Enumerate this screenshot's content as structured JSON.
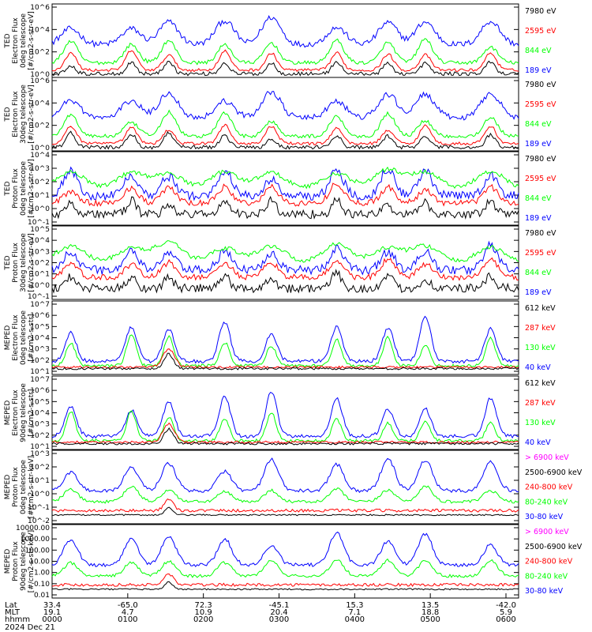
{
  "colors": {
    "blue": "#0000ff",
    "red": "#ff0000",
    "green": "#00ff00",
    "black": "#000000",
    "magenta": "#ff00ff"
  },
  "chart_data": [
    {
      "type": "line",
      "ylabel_lines": [
        "TED",
        "Electron Flux",
        "0deg telescope",
        "[#/cm2-s-str-eV]"
      ],
      "ytick_labels": [
        "10^6",
        "10^4",
        "10^2",
        "10^0"
      ],
      "ylim_log10": [
        0,
        6
      ],
      "legend": [
        {
          "label": "7980 eV",
          "color": "#000000"
        },
        {
          "label": "2595 eV",
          "color": "#ff0000"
        },
        {
          "label": "844 eV",
          "color": "#00ff00"
        },
        {
          "label": "189 eV",
          "color": "#0000ff"
        }
      ]
    },
    {
      "type": "line",
      "ylabel_lines": [
        "TED",
        "Electron Flux",
        "30deg telescope",
        "[#/cm2-s-str-eV]"
      ],
      "ytick_labels": [
        "10^6",
        "10^4",
        "10^2",
        "10^0"
      ],
      "ylim_log10": [
        0,
        6
      ],
      "legend": [
        {
          "label": "7980 eV",
          "color": "#000000"
        },
        {
          "label": "2595 eV",
          "color": "#ff0000"
        },
        {
          "label": "844 eV",
          "color": "#00ff00"
        },
        {
          "label": "189 eV",
          "color": "#0000ff"
        }
      ]
    },
    {
      "type": "line",
      "ylabel_lines": [
        "TED",
        "Proton Flux",
        "0deg telescope",
        "[#/cm2-s-str-eV]"
      ],
      "ytick_labels": [
        "10^4",
        "10^3",
        "10^2",
        "10^1",
        "10^0",
        "10^-1"
      ],
      "ylim_log10": [
        -1,
        4
      ],
      "legend": [
        {
          "label": "7980 eV",
          "color": "#000000"
        },
        {
          "label": "2595 eV",
          "color": "#ff0000"
        },
        {
          "label": "844 eV",
          "color": "#00ff00"
        },
        {
          "label": "189 eV",
          "color": "#0000ff"
        }
      ]
    },
    {
      "type": "line",
      "ylabel_lines": [
        "TED",
        "Proton Flux",
        "30deg telescope",
        "[#/cm2-s-str-eV]"
      ],
      "ytick_labels": [
        "10^5",
        "10^4",
        "10^3",
        "10^2",
        "10^1",
        "10^0",
        "10^-1"
      ],
      "ylim_log10": [
        -1,
        5
      ],
      "legend": [
        {
          "label": "7980 eV",
          "color": "#000000"
        },
        {
          "label": "2595 eV",
          "color": "#ff0000"
        },
        {
          "label": "844 eV",
          "color": "#00ff00"
        },
        {
          "label": "189 eV",
          "color": "#0000ff"
        }
      ]
    },
    {
      "type": "line",
      "ylabel_lines": [
        "MEPED",
        "Electron Flux",
        "0deg telescope",
        "[#/cm2-s-str]"
      ],
      "ytick_labels": [
        "10^7",
        "10^6",
        "10^5",
        "10^4",
        "10^3",
        "10^2",
        "10^1"
      ],
      "ylim_log10": [
        1,
        7
      ],
      "legend": [
        {
          "label": "612 keV",
          "color": "#000000"
        },
        {
          "label": "287 keV",
          "color": "#ff0000"
        },
        {
          "label": "130 keV",
          "color": "#00ff00"
        },
        {
          "label": "40 keV",
          "color": "#0000ff"
        }
      ]
    },
    {
      "type": "line",
      "ylabel_lines": [
        "MEPED",
        "Electron Flux",
        "90deg telescope",
        "[#/cm2-s-str]"
      ],
      "ytick_labels": [
        "10^7",
        "10^6",
        "10^5",
        "10^4",
        "10^3",
        "10^2",
        "10^1"
      ],
      "ylim_log10": [
        1,
        7
      ],
      "legend": [
        {
          "label": "612 keV",
          "color": "#000000"
        },
        {
          "label": "287 keV",
          "color": "#ff0000"
        },
        {
          "label": "130 keV",
          "color": "#00ff00"
        },
        {
          "label": "40 keV",
          "color": "#0000ff"
        }
      ]
    },
    {
      "type": "line",
      "ylabel_lines": [
        "MEPED",
        "Proton Flux",
        "0deg telescope",
        "[#/cm2-s-str-keV]"
      ],
      "ytick_labels": [
        "10^3",
        "10^2",
        "10^1",
        "10^0",
        "10^-1",
        "10^-2"
      ],
      "ylim_log10": [
        -2,
        3
      ],
      "legend": [
        {
          "label": "> 6900 keV",
          "color": "#ff00ff"
        },
        {
          "label": "2500-6900 keV",
          "color": "#000000"
        },
        {
          "label": "240-800 keV",
          "color": "#ff0000"
        },
        {
          "label": "80-240 keV",
          "color": "#00ff00"
        },
        {
          "label": "30-80 keV",
          "color": "#0000ff"
        }
      ]
    },
    {
      "type": "line",
      "ylabel_lines": [
        "MEPED",
        "Proton Flux",
        "90deg telescope",
        "[#/cm2-s-str-keV]"
      ],
      "ytick_labels": [
        "10000.00",
        "1000.00",
        "100.00",
        "10.00",
        "1.00",
        "0.10",
        "0.01"
      ],
      "ylim_log10": [
        -2,
        4
      ],
      "legend": [
        {
          "label": "> 6900 keV",
          "color": "#ff00ff"
        },
        {
          "label": "2500-6900 keV",
          "color": "#000000"
        },
        {
          "label": "240-800 keV",
          "color": "#ff0000"
        },
        {
          "label": "80-240 keV",
          "color": "#00ff00"
        },
        {
          "label": "30-80 keV",
          "color": "#0000ff"
        }
      ]
    }
  ],
  "xaxis": {
    "row_labels": [
      "Lat",
      "MLT",
      "hhmm",
      "2024 Dec 21"
    ],
    "lat": [
      "33.4",
      "-65.0",
      "72.3",
      "-45.1",
      "15.3",
      "13.5",
      "-42.0"
    ],
    "mlt": [
      "19.1",
      "4.7",
      "10.9",
      "20.4",
      "7.1",
      "18.8",
      "5.9"
    ],
    "hhmm": [
      "0000",
      "0100",
      "0200",
      "0300",
      "0400",
      "0500",
      "0600"
    ]
  }
}
